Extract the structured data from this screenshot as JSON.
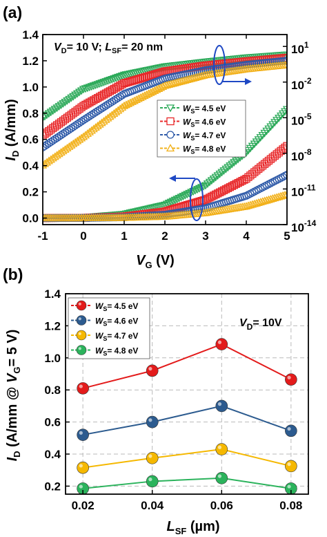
{
  "chart_data": [
    {
      "panel": "(a)",
      "type": "scatter",
      "annotation": {
        "main": "V",
        "main_sub": "D",
        "rest": "= 10 V; ",
        "l": "L",
        "l_sub": "SF",
        "l_rest": "= 20 nm"
      },
      "xlabel": {
        "main": "V",
        "sub": "G",
        "rest": " (V)"
      },
      "ylabel": {
        "main": "I",
        "sub": "D",
        "rest": " (A/mm)"
      },
      "xlim": [
        -1,
        5
      ],
      "ylim": [
        -0.05,
        1.4
      ],
      "y2lim_log": [
        -14,
        2
      ],
      "x_ticks": [
        "-1",
        "0",
        "1",
        "2",
        "3",
        "4",
        "5"
      ],
      "x_tick_values": [
        -1,
        0,
        1,
        2,
        3,
        4,
        5
      ],
      "y_ticks": [
        "0.0",
        "0.2",
        "0.4",
        "0.6",
        "0.8",
        "1.0",
        "1.2",
        "1.4"
      ],
      "y_tick_values": [
        0,
        0.2,
        0.4,
        0.6,
        0.8,
        1.0,
        1.2,
        1.4
      ],
      "y2_ticks": [
        {
          "base": "10",
          "exp": "1"
        },
        {
          "base": "10",
          "exp": "-2"
        },
        {
          "base": "10",
          "exp": "-5"
        },
        {
          "base": "10",
          "exp": "-8"
        },
        {
          "base": "10",
          "exp": "-11"
        },
        {
          "base": "10",
          "exp": "-14"
        }
      ],
      "y2_tick_values": [
        1,
        -2,
        -5,
        -8,
        -11,
        -14
      ],
      "legend_position": "center-right",
      "series": [
        {
          "name": {
            "main": "W",
            "sub": "S",
            "rest": "= 4.5 eV"
          },
          "marker": "triangle-down",
          "color": "#2daa5a",
          "linear": {
            "x": [
              -1,
              0,
              1,
              2,
              3,
              4,
              5
            ],
            "y": [
              0.0,
              0.005,
              0.03,
              0.1,
              0.25,
              0.5,
              0.83
            ]
          },
          "log": {
            "x": [
              -1,
              0,
              1,
              2,
              3,
              4,
              5
            ],
            "y": [
              -5.0,
              -2.6,
              -1.4,
              -0.7,
              -0.3,
              0.05,
              0.3
            ]
          }
        },
        {
          "name": {
            "main": "W",
            "sub": "S",
            "rest": "= 4.6 eV"
          },
          "marker": "square",
          "color": "#e8282a",
          "linear": {
            "x": [
              -1,
              0,
              1,
              2,
              3,
              4,
              5
            ],
            "y": [
              0.0,
              0.002,
              0.012,
              0.05,
              0.14,
              0.3,
              0.55
            ]
          },
          "log": {
            "x": [
              -1,
              0,
              1,
              2,
              3,
              4,
              5
            ],
            "y": [
              -6.5,
              -4.0,
              -2.1,
              -1.1,
              -0.6,
              -0.25,
              0.05
            ]
          }
        },
        {
          "name": {
            "main": "W",
            "sub": "S",
            "rest": "= 4.7 eV"
          },
          "marker": "circle",
          "color": "#2e5aa8",
          "linear": {
            "x": [
              -1,
              0,
              1,
              2,
              3,
              4,
              5
            ],
            "y": [
              0.0,
              0.001,
              0.006,
              0.025,
              0.075,
              0.17,
              0.33
            ]
          },
          "log": {
            "x": [
              -1,
              0,
              1,
              2,
              3,
              4,
              5
            ],
            "y": [
              -7.5,
              -5.2,
              -3.0,
              -1.7,
              -1.0,
              -0.55,
              -0.2
            ]
          }
        },
        {
          "name": {
            "main": "W",
            "sub": "S",
            "rest": "= 4.8 eV"
          },
          "marker": "triangle-up",
          "color": "#f2b11a",
          "linear": {
            "x": [
              -1,
              0,
              1,
              2,
              3,
              4,
              5
            ],
            "y": [
              0.0,
              0.0005,
              0.003,
              0.012,
              0.04,
              0.09,
              0.18
            ]
          },
          "log": {
            "x": [
              -1,
              0,
              1,
              2,
              3,
              4,
              5
            ],
            "y": [
              -9.0,
              -6.6,
              -4.0,
              -2.3,
              -1.4,
              -0.9,
              -0.55
            ]
          }
        }
      ]
    },
    {
      "panel": "(b)",
      "type": "line",
      "annotation": {
        "main": "V",
        "sub": "D",
        "rest": "= 10V"
      },
      "xlabel": {
        "main": "L",
        "sub": "SF",
        "rest": " (µm)"
      },
      "ylabel": {
        "main": "I",
        "sub": "D",
        "rest": " (A/mm @ ",
        "v": "V",
        "v_sub": "G",
        "v_rest": "= 5 V)"
      },
      "xlim": [
        0.015,
        0.085
      ],
      "ylim": [
        0.15,
        1.4
      ],
      "x_ticks": [
        "0.02",
        "0.04",
        "0.06",
        "0.08"
      ],
      "x_tick_values": [
        0.02,
        0.04,
        0.06,
        0.08
      ],
      "y_ticks": [
        "0.2",
        "0.4",
        "0.6",
        "0.8",
        "1.0",
        "1.2",
        "1.4"
      ],
      "y_tick_values": [
        0.2,
        0.4,
        0.6,
        0.8,
        1.0,
        1.2,
        1.4
      ],
      "grid": true,
      "legend_position": "top-left",
      "x": [
        0.02,
        0.04,
        0.06,
        0.08
      ],
      "series": [
        {
          "name": {
            "main": "W",
            "sub": "S",
            "rest": "= 4.5 eV"
          },
          "color": "#e31b1b",
          "values": [
            0.81,
            0.92,
            1.085,
            0.865
          ]
        },
        {
          "name": {
            "main": "W",
            "sub": "S",
            "rest": "= 4.6 eV"
          },
          "color": "#2c5b8f",
          "values": [
            0.52,
            0.6,
            0.7,
            0.545
          ]
        },
        {
          "name": {
            "main": "W",
            "sub": "S",
            "rest": "= 4.7 eV"
          },
          "color": "#f5b800",
          "values": [
            0.315,
            0.375,
            0.43,
            0.325
          ]
        },
        {
          "name": {
            "main": "W",
            "sub": "S",
            "rest": "= 4.8 eV"
          },
          "color": "#2bb35c",
          "values": [
            0.185,
            0.23,
            0.25,
            0.185
          ]
        }
      ]
    }
  ]
}
